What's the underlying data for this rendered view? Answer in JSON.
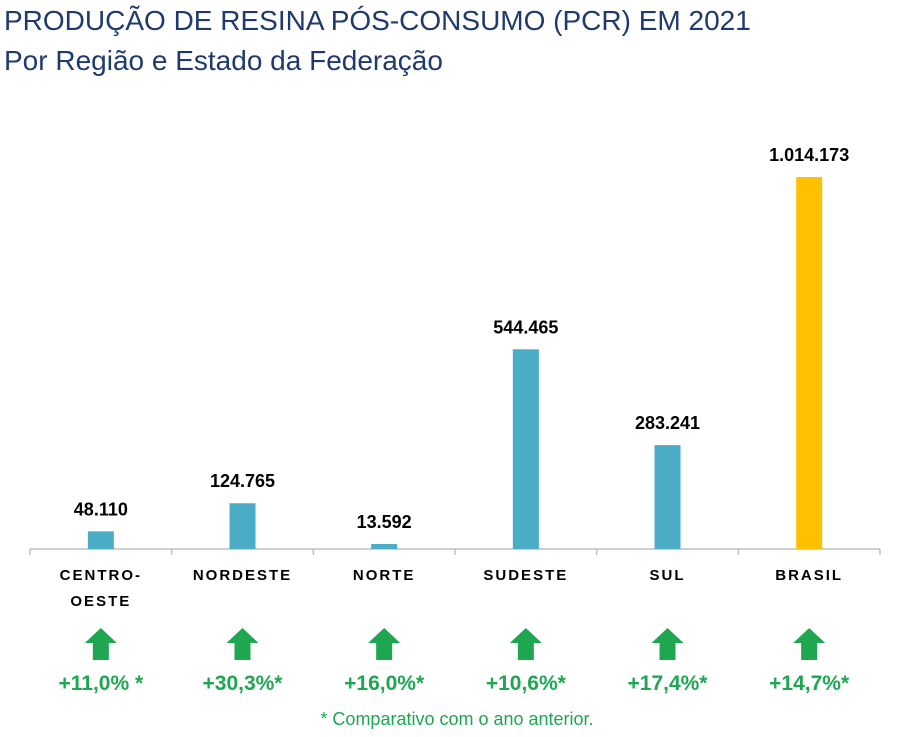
{
  "title": "PRODUÇÃO DE RESINA PÓS-CONSUMO (PCR) EM 2021",
  "subtitle": "Por Região e Estado da Federação",
  "footnote": "* Comparativo com o ano anterior.",
  "colors": {
    "title": "#1f3a6e",
    "bar": "#4bacc6",
    "highlight_bar": "#ffc000",
    "growth": "#1ea651",
    "axis": "#bfbfbf",
    "value_label": "#000000",
    "category_label": "#000000"
  },
  "chart_data": {
    "type": "bar",
    "title": "PRODUÇÃO DE RESINA PÓS-CONSUMO (PCR) EM 2021",
    "subtitle": "Por Região e Estado da Federação",
    "xlabel": "",
    "ylabel": "",
    "ylim": [
      0,
      1014173
    ],
    "grid": false,
    "categories": [
      [
        "CENTRO-",
        "OESTE"
      ],
      [
        "NORDESTE"
      ],
      [
        "NORTE"
      ],
      [
        "SUDESTE"
      ],
      [
        "SUL"
      ],
      [
        "BRASIL"
      ]
    ],
    "values": [
      48110,
      124765,
      13592,
      544465,
      283241,
      1014173
    ],
    "value_labels": [
      "48.110",
      "124.765",
      "13.592",
      "544.465",
      "283.241",
      "1.014.173"
    ],
    "highlight": [
      false,
      false,
      false,
      false,
      false,
      true
    ],
    "growth_labels": [
      "+11,0% *",
      "+30,3%*",
      "+16,0%*",
      "+10,6%*",
      "+17,4%*",
      "+14,7%*"
    ],
    "growth_direction": [
      "up",
      "up",
      "up",
      "up",
      "up",
      "up"
    ]
  }
}
